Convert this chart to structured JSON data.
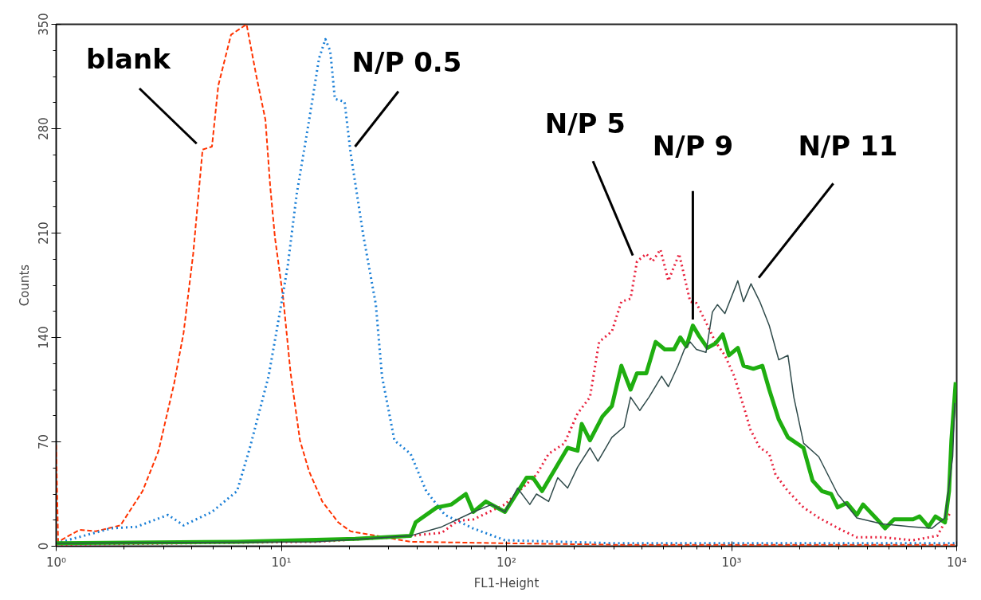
{
  "chart_data": {
    "type": "line",
    "xlabel": "FL1-Height",
    "ylabel": "Counts",
    "log": "x",
    "grid": false,
    "marker": "none",
    "xlim": [
      1,
      10000
    ],
    "xticks": [
      {
        "value": 1,
        "label": "10⁰"
      },
      {
        "value": 10,
        "label": "10¹"
      },
      {
        "value": 100,
        "label": "10²"
      },
      {
        "value": 1000,
        "label": "10³"
      },
      {
        "value": 10000,
        "label": "10⁴"
      }
    ],
    "ylim": [
      0,
      350
    ],
    "yticks": [
      0,
      70,
      140,
      210,
      280,
      350
    ],
    "series": [
      {
        "name": "blank",
        "color": "#ff3300",
        "line_style": "dashed",
        "x": [
          1.0,
          1.02,
          1.27,
          1.5,
          1.93,
          2.42,
          2.85,
          3.34,
          3.68,
          4.06,
          4.47,
          4.92,
          5.25,
          5.98,
          7.01,
          7.73,
          8.5,
          8.93,
          9.37,
          10.2,
          11.0,
          12.1,
          13.3,
          15.2,
          17.9,
          20.3,
          37.5,
          98,
          300,
          1000,
          3000,
          9800
        ],
        "values": [
          68,
          3,
          11,
          10,
          14,
          37,
          64,
          109,
          143,
          196,
          266,
          268,
          309,
          343,
          350,
          316,
          286,
          241,
          207,
          166,
          116,
          71,
          50,
          30,
          16,
          10,
          3,
          2,
          1,
          1,
          1,
          1
        ]
      },
      {
        "name": "N/P 0.5",
        "color": "#1a7fd6",
        "line_style": "dotted",
        "x": [
          1.0,
          1.76,
          2.27,
          3.14,
          3.68,
          4.92,
          6.36,
          7.25,
          8.78,
          9.99,
          10.7,
          11.7,
          13.3,
          14.7,
          15.7,
          16.5,
          17.3,
          19.1,
          20.3,
          23.1,
          26.3,
          28.0,
          31.8,
          37.5,
          44.0,
          53.3,
          71,
          98.5,
          300,
          1000,
          3000,
          9800
        ],
        "values": [
          2,
          12,
          13,
          21,
          14,
          23,
          37,
          66,
          114,
          162,
          189,
          236,
          286,
          327,
          340,
          332,
          300,
          298,
          264,
          209,
          162,
          114,
          71,
          62,
          37,
          21,
          12,
          4,
          2,
          2,
          2,
          2
        ]
      },
      {
        "name": "N/P 5",
        "color": "#e8203c",
        "line_style": "dotted",
        "x": [
          1.0,
          14.3,
          31.8,
          51.6,
          60.7,
          71.3,
          98.5,
          136,
          154,
          181,
          207,
          235,
          258,
          294,
          324,
          356,
          380,
          418,
          446,
          483,
          524,
          585,
          655,
          698,
          770,
          848,
          934,
          1028,
          1130,
          1214,
          1335,
          1470,
          1568,
          1779,
          2086,
          2446,
          3070,
          3605,
          4660,
          6400,
          8200,
          9400
        ],
        "values": [
          1,
          3,
          6,
          9,
          17,
          18,
          28,
          48,
          62,
          69,
          89,
          100,
          137,
          144,
          164,
          166,
          191,
          196,
          191,
          199,
          178,
          196,
          164,
          163,
          150,
          137,
          128,
          114,
          94,
          78,
          66,
          62,
          48,
          37,
          26,
          19,
          11,
          6,
          6,
          4,
          7,
          23
        ]
      },
      {
        "name": "N/P 9",
        "color": "#1fae10",
        "line_style": "solid",
        "x": [
          1.0,
          6.36,
          21.3,
          37.5,
          39.5,
          49,
          57,
          66,
          71.3,
          81,
          98.5,
          123,
          131,
          144,
          187,
          207,
          216,
          235,
          267,
          294,
          324,
          356,
          380,
          418,
          460,
          505,
          555,
          592,
          630,
          673,
          717,
          781,
          848,
          913,
          974,
          1066,
          1130,
          1250,
          1370,
          1470,
          1620,
          1780,
          2086,
          2290,
          2520,
          2770,
          2960,
          3250,
          3600,
          3840,
          4370,
          4810,
          5270,
          6400,
          6840,
          7500,
          8050,
          8870,
          9250,
          9470,
          9900
        ],
        "values": [
          2,
          3,
          5,
          7,
          16,
          26,
          28,
          35,
          23,
          30,
          23,
          46,
          46,
          37,
          66,
          64,
          82,
          71,
          87,
          94,
          121,
          105,
          116,
          116,
          137,
          132,
          132,
          140,
          134,
          148,
          141,
          133,
          136,
          142,
          128,
          133,
          121,
          119,
          121,
          105,
          85,
          73,
          66,
          44,
          37,
          35,
          26,
          29,
          21,
          28,
          19,
          12,
          18,
          18,
          20,
          13,
          20,
          16,
          37,
          71,
          110
        ]
      },
      {
        "name": "N/P 11",
        "color": "#2f4a4a",
        "line_style": "solid",
        "x": [
          1.0,
          14.3,
          37.5,
          51.6,
          71.3,
          86,
          98.5,
          112,
          127,
          136,
          154,
          169,
          187,
          207,
          235,
          255,
          294,
          333,
          356,
          391,
          430,
          489,
          524,
          578,
          617,
          655,
          698,
          770,
          822,
          865,
          934,
          1066,
          1130,
          1220,
          1335,
          1470,
          1620,
          1780,
          1890,
          2090,
          2440,
          2960,
          3600,
          4660,
          6400,
          7760,
          8870,
          9600,
          9800
        ],
        "values": [
          2,
          3,
          7,
          13,
          23,
          28,
          23,
          39,
          28,
          35,
          30,
          46,
          39,
          53,
          66,
          57,
          73,
          80,
          100,
          91,
          100,
          114,
          107,
          121,
          132,
          137,
          132,
          130,
          157,
          162,
          156,
          178,
          164,
          176,
          164,
          148,
          125,
          128,
          100,
          69,
          60,
          35,
          19,
          15,
          13,
          12,
          19,
          60,
          96
        ]
      }
    ]
  }
}
